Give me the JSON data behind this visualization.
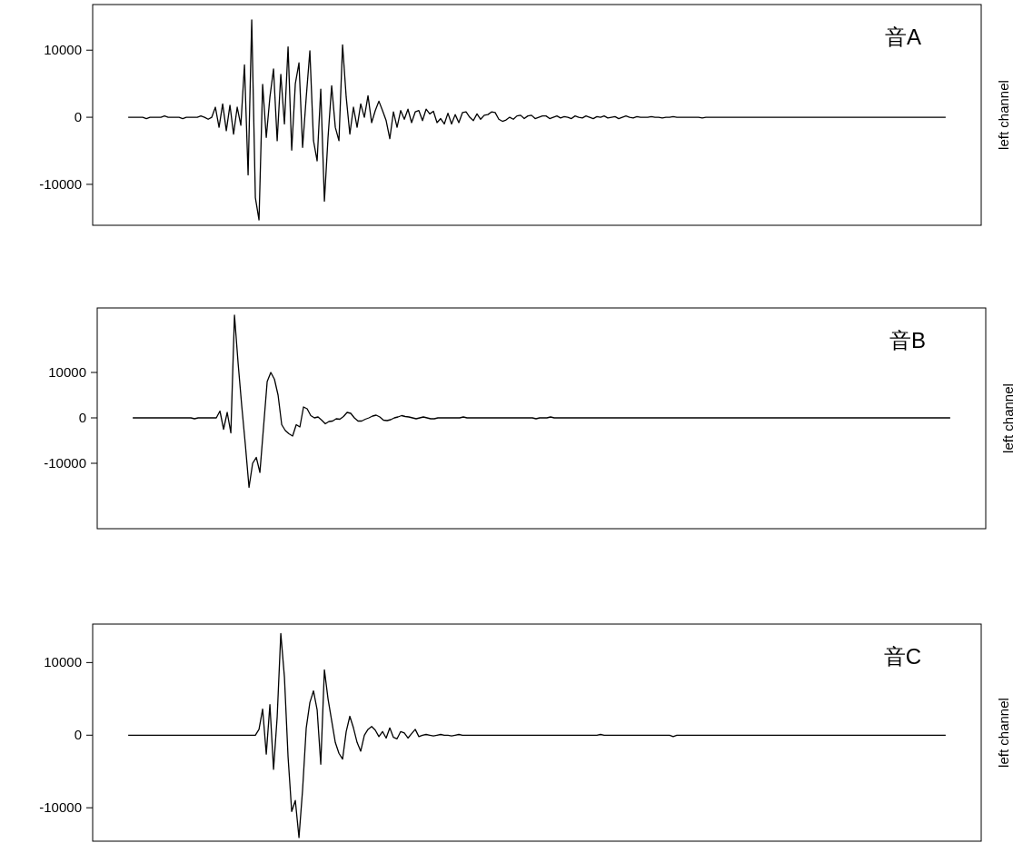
{
  "chart_data": [
    {
      "type": "line",
      "title": "音A",
      "ylabel": "left channel",
      "ylim": [
        -16100,
        16800
      ],
      "yticks": [
        -10000,
        0,
        10000
      ],
      "line_style": "solid",
      "categories": [
        null,
        null,
        null,
        null,
        null,
        null,
        null,
        null,
        null,
        null,
        null,
        null,
        null,
        null,
        null,
        null,
        null,
        null,
        null,
        null,
        null,
        null,
        null,
        null,
        null,
        null,
        null,
        null,
        null,
        null,
        null,
        null,
        null,
        null,
        null,
        null,
        null,
        null,
        null,
        null,
        null,
        null,
        null,
        null,
        null,
        null,
        null,
        null,
        null,
        null,
        null,
        null,
        null,
        null,
        null,
        null,
        null,
        null,
        null,
        null,
        null,
        null,
        null,
        null,
        null,
        null,
        null,
        null,
        null,
        null,
        null,
        null,
        null,
        null,
        null,
        null,
        null,
        null,
        null,
        null,
        null,
        null,
        null,
        null,
        null,
        null,
        null,
        null,
        null,
        null,
        null,
        null,
        null,
        null,
        null,
        null,
        null,
        null,
        null,
        null,
        null,
        null,
        null,
        null,
        null,
        null,
        null,
        null,
        null,
        null,
        null,
        null,
        null,
        null,
        null,
        null,
        null,
        null,
        null,
        null,
        null,
        null,
        null,
        null,
        null,
        null,
        null,
        null,
        null,
        null,
        null,
        null,
        null,
        null,
        null,
        null,
        null,
        null,
        null,
        null,
        null,
        null,
        null,
        null,
        null,
        null,
        null,
        null,
        null,
        null,
        null,
        null,
        null,
        null,
        null,
        null,
        null,
        null,
        null,
        null,
        null,
        null,
        null,
        null,
        null,
        null,
        null,
        null,
        null,
        null,
        null,
        null,
        null,
        null,
        null,
        null,
        null,
        null,
        null,
        null,
        null,
        null,
        null,
        null,
        null,
        null,
        null,
        null,
        null,
        null,
        null,
        null,
        null,
        null,
        null,
        null,
        null,
        null,
        null,
        null,
        null,
        null,
        null,
        null,
        null,
        null,
        null,
        null,
        null,
        null,
        null,
        null,
        null,
        null,
        null,
        null,
        null,
        null,
        null,
        null,
        null,
        null,
        null,
        null,
        null,
        null
      ],
      "series": [
        {
          "color": "#000000",
          "values": [
            0,
            0,
            0,
            0,
            0,
            -200,
            0,
            0,
            0,
            0,
            200,
            0,
            0,
            0,
            0,
            -200,
            0,
            0,
            0,
            0,
            200,
            0,
            -300,
            0,
            1500,
            -1500,
            2000,
            -2000,
            1800,
            -2500,
            1500,
            -1200,
            7800,
            -8600,
            14500,
            -12000,
            -15300,
            4900,
            -3000,
            3000,
            7200,
            -3500,
            6400,
            -1000,
            10500,
            -4900,
            5000,
            8100,
            -4500,
            3000,
            9900,
            -3500,
            -6500,
            4200,
            -12500,
            -3000,
            4700,
            -1500,
            -3500,
            10800,
            3000,
            -2500,
            1500,
            -1500,
            2000,
            0,
            3200,
            -800,
            1000,
            2400,
            1000,
            -500,
            -3200,
            800,
            -1500,
            1000,
            -300,
            1200,
            -800,
            800,
            1000,
            -500,
            1200,
            500,
            900,
            -800,
            -200,
            -1000,
            600,
            -1000,
            400,
            -800,
            700,
            800,
            0,
            -500,
            500,
            -300,
            300,
            400,
            800,
            700,
            -300,
            -600,
            -400,
            0,
            -300,
            200,
            300,
            -200,
            200,
            300,
            -200,
            0,
            200,
            200,
            -200,
            0,
            200,
            -100,
            100,
            0,
            -200,
            200,
            0,
            -100,
            200,
            0,
            -200,
            100,
            0,
            200,
            -100,
            0,
            100,
            -200,
            0,
            200,
            0,
            -100,
            100,
            0,
            0,
            0,
            100,
            0,
            0,
            -100,
            0,
            0,
            100,
            0,
            0,
            0,
            0,
            0,
            0,
            0,
            -100,
            0,
            0,
            0,
            0,
            0,
            0,
            0,
            0,
            0,
            0,
            0,
            0,
            0,
            0,
            0,
            0,
            0,
            0,
            0,
            0,
            0,
            0,
            0,
            0,
            0,
            0,
            0,
            0,
            0,
            0,
            0,
            0,
            0,
            0,
            0,
            0,
            0,
            0,
            0,
            0,
            0,
            0,
            0,
            0,
            0,
            0,
            0,
            0,
            0,
            0,
            0,
            0,
            0,
            0,
            0,
            0,
            0,
            0,
            0,
            0,
            0,
            0,
            0,
            0,
            0,
            0,
            0
          ]
        }
      ]
    },
    {
      "type": "line",
      "title": "音B",
      "ylabel": "left channel",
      "ylim": [
        -24400,
        24200
      ],
      "yticks": [
        -10000,
        0,
        10000
      ],
      "line_style": "solid",
      "categories": [
        null,
        null,
        null,
        null,
        null,
        null,
        null,
        null,
        null,
        null,
        null,
        null,
        null,
        null,
        null,
        null,
        null,
        null,
        null,
        null,
        null,
        null,
        null,
        null,
        null,
        null,
        null,
        null,
        null,
        null,
        null,
        null,
        null,
        null,
        null,
        null,
        null,
        null,
        null,
        null,
        null,
        null,
        null,
        null,
        null,
        null,
        null,
        null,
        null,
        null,
        null,
        null,
        null,
        null,
        null,
        null,
        null,
        null,
        null,
        null,
        null,
        null,
        null,
        null,
        null,
        null,
        null,
        null,
        null,
        null,
        null,
        null,
        null,
        null,
        null,
        null,
        null,
        null,
        null,
        null,
        null,
        null,
        null,
        null,
        null,
        null,
        null,
        null,
        null,
        null,
        null,
        null,
        null,
        null,
        null,
        null,
        null,
        null,
        null,
        null,
        null,
        null,
        null,
        null,
        null,
        null,
        null,
        null,
        null,
        null,
        null,
        null,
        null,
        null,
        null,
        null,
        null,
        null,
        null,
        null,
        null,
        null,
        null,
        null,
        null,
        null,
        null,
        null,
        null,
        null,
        null,
        null,
        null,
        null,
        null,
        null,
        null,
        null,
        null,
        null,
        null,
        null,
        null,
        null,
        null,
        null,
        null,
        null,
        null,
        null,
        null,
        null,
        null,
        null,
        null,
        null,
        null,
        null,
        null,
        null,
        null,
        null,
        null,
        null,
        null,
        null,
        null,
        null,
        null,
        null,
        null,
        null,
        null,
        null,
        null,
        null,
        null,
        null,
        null,
        null,
        null,
        null,
        null,
        null,
        null,
        null,
        null,
        null,
        null,
        null,
        null,
        null,
        null,
        null,
        null,
        null,
        null,
        null,
        null,
        null,
        null,
        null,
        null,
        null,
        null,
        null,
        null,
        null,
        null,
        null,
        null,
        null,
        null,
        null,
        null,
        null,
        null,
        null,
        null,
        null,
        null,
        null,
        null,
        null,
        null,
        null
      ],
      "series": [
        {
          "color": "#000000",
          "values": [
            0,
            0,
            0,
            0,
            0,
            0,
            0,
            0,
            0,
            0,
            0,
            0,
            0,
            0,
            0,
            0,
            0,
            -200,
            0,
            0,
            0,
            0,
            0,
            0,
            1500,
            -2500,
            1200,
            -3300,
            22600,
            12000,
            2600,
            -6000,
            -15300,
            -10000,
            -8700,
            -12000,
            -2000,
            8000,
            10000,
            8500,
            5000,
            -1500,
            -2800,
            -3500,
            -4000,
            -1500,
            -2000,
            2400,
            2000,
            500,
            0,
            200,
            -500,
            -1300,
            -800,
            -700,
            -200,
            -300,
            300,
            1200,
            1000,
            0,
            -700,
            -700,
            -300,
            0,
            400,
            600,
            200,
            -500,
            -600,
            -400,
            0,
            200,
            500,
            300,
            200,
            0,
            -200,
            0,
            200,
            0,
            -200,
            -200,
            0,
            0,
            0,
            0,
            0,
            0,
            0,
            200,
            0,
            0,
            0,
            0,
            0,
            0,
            0,
            0,
            0,
            0,
            0,
            0,
            0,
            0,
            0,
            0,
            0,
            0,
            0,
            -200,
            0,
            0,
            0,
            200,
            0,
            0,
            0,
            0,
            0,
            0,
            0,
            0,
            0,
            0,
            0,
            0,
            0,
            0,
            0,
            0,
            0,
            0,
            0,
            0,
            0,
            0,
            0,
            0,
            0,
            0,
            0,
            0,
            0,
            0,
            0,
            0,
            0,
            0,
            0,
            0,
            0,
            0,
            0,
            0,
            0,
            0,
            0,
            0,
            0,
            0,
            0,
            0,
            0,
            0,
            0,
            0,
            0,
            0,
            0,
            0,
            0,
            0,
            0,
            0,
            0,
            0,
            0,
            0,
            0,
            0,
            0,
            0,
            0,
            0,
            0,
            0,
            0,
            0,
            0,
            0,
            0,
            0,
            0,
            0,
            0,
            0,
            0,
            0,
            0,
            0,
            0,
            0,
            0,
            0,
            0,
            0,
            0,
            0,
            0,
            0,
            0,
            0,
            0,
            0,
            0,
            0,
            0,
            0,
            0,
            0,
            0,
            0,
            0,
            0
          ]
        }
      ]
    },
    {
      "type": "line",
      "title": "音C",
      "ylabel": "left channel",
      "ylim": [
        -14600,
        15300
      ],
      "yticks": [
        -10000,
        0,
        10000
      ],
      "line_style": "solid",
      "categories": [
        null,
        null,
        null,
        null,
        null,
        null,
        null,
        null,
        null,
        null,
        null,
        null,
        null,
        null,
        null,
        null,
        null,
        null,
        null,
        null,
        null,
        null,
        null,
        null,
        null,
        null,
        null,
        null,
        null,
        null,
        null,
        null,
        null,
        null,
        null,
        null,
        null,
        null,
        null,
        null,
        null,
        null,
        null,
        null,
        null,
        null,
        null,
        null,
        null,
        null,
        null,
        null,
        null,
        null,
        null,
        null,
        null,
        null,
        null,
        null,
        null,
        null,
        null,
        null,
        null,
        null,
        null,
        null,
        null,
        null,
        null,
        null,
        null,
        null,
        null,
        null,
        null,
        null,
        null,
        null,
        null,
        null,
        null,
        null,
        null,
        null,
        null,
        null,
        null,
        null,
        null,
        null,
        null,
        null,
        null,
        null,
        null,
        null,
        null,
        null,
        null,
        null,
        null,
        null,
        null,
        null,
        null,
        null,
        null,
        null,
        null,
        null,
        null,
        null,
        null,
        null,
        null,
        null,
        null,
        null,
        null,
        null,
        null,
        null,
        null,
        null,
        null,
        null,
        null,
        null,
        null,
        null,
        null,
        null,
        null,
        null,
        null,
        null,
        null,
        null,
        null,
        null,
        null,
        null,
        null,
        null,
        null,
        null,
        null,
        null,
        null,
        null,
        null,
        null,
        null,
        null,
        null,
        null,
        null,
        null,
        null,
        null,
        null,
        null,
        null,
        null,
        null,
        null,
        null,
        null,
        null,
        null,
        null,
        null,
        null,
        null,
        null,
        null,
        null,
        null,
        null,
        null,
        null,
        null,
        null,
        null,
        null,
        null,
        null,
        null,
        null,
        null,
        null,
        null,
        null,
        null,
        null,
        null,
        null,
        null,
        null,
        null,
        null,
        null,
        null,
        null,
        null,
        null,
        null,
        null,
        null,
        null,
        null,
        null,
        null,
        null,
        null,
        null,
        null,
        null,
        null,
        null,
        null,
        null,
        null,
        null
      ],
      "series": [
        {
          "color": "#000000",
          "values": [
            0,
            0,
            0,
            0,
            0,
            0,
            0,
            0,
            0,
            0,
            0,
            0,
            0,
            0,
            0,
            0,
            0,
            0,
            0,
            0,
            0,
            0,
            0,
            0,
            0,
            0,
            0,
            0,
            0,
            0,
            0,
            0,
            0,
            0,
            0,
            0,
            800,
            3600,
            -2600,
            4200,
            -4700,
            2500,
            14000,
            8000,
            -3000,
            -10500,
            -9000,
            -14100,
            -7500,
            1000,
            4500,
            6100,
            3500,
            -4000,
            9000,
            5000,
            2000,
            -1000,
            -2500,
            -3300,
            500,
            2600,
            1000,
            -1000,
            -2200,
            0,
            800,
            1200,
            700,
            -200,
            500,
            -400,
            1000,
            -300,
            -500,
            500,
            300,
            -400,
            200,
            800,
            -200,
            0,
            100,
            0,
            -100,
            0,
            100,
            0,
            0,
            -100,
            0,
            100,
            0,
            0,
            0,
            0,
            0,
            0,
            0,
            0,
            0,
            0,
            0,
            0,
            0,
            0,
            0,
            0,
            0,
            0,
            0,
            0,
            0,
            0,
            0,
            0,
            0,
            0,
            0,
            0,
            0,
            0,
            0,
            0,
            0,
            0,
            0,
            0,
            0,
            0,
            100,
            0,
            0,
            0,
            0,
            0,
            0,
            0,
            0,
            0,
            0,
            0,
            0,
            0,
            0,
            0,
            0,
            0,
            0,
            0,
            -200,
            0,
            0,
            0,
            0,
            0,
            0,
            0,
            0,
            0,
            0,
            0,
            0,
            0,
            0,
            0,
            0,
            0,
            0,
            0,
            0,
            0,
            0,
            0,
            0,
            0,
            0,
            0,
            0,
            0,
            0,
            0,
            0,
            0,
            0,
            0,
            0,
            0,
            0,
            0,
            0,
            0,
            0,
            0,
            0,
            0,
            0,
            0,
            0,
            0,
            0,
            0,
            0,
            0,
            0,
            0,
            0,
            0,
            0,
            0,
            0,
            0,
            0,
            0,
            0,
            0,
            0,
            0,
            0,
            0,
            0,
            0,
            0,
            0,
            0,
            0
          ]
        }
      ]
    }
  ]
}
